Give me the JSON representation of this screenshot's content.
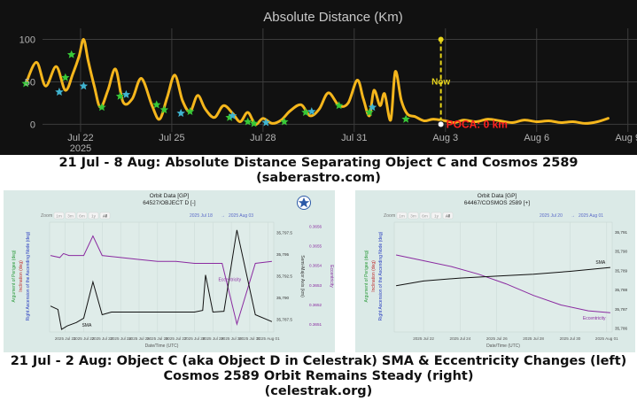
{
  "top_chart": {
    "title": "Absolute Distance (Km)",
    "now_label": "Now",
    "poca_label": "POCA: 0 km",
    "chart_data": {
      "type": "line",
      "title": "Absolute Distance (Km)",
      "xlabel": "",
      "ylabel": "",
      "x_ticks": [
        "Jul 22",
        "Jul 25",
        "Jul 28",
        "Jul 31",
        "Aug 3",
        "Aug 6",
        "Aug 9"
      ],
      "x_tick_values": [
        22,
        25,
        28,
        31,
        34,
        37,
        40
      ],
      "x_sub_label": "2025",
      "y_ticks": [
        0,
        50,
        100
      ],
      "xlim": [
        19.35,
        40.3
      ],
      "ylim": [
        -9,
        112
      ],
      "grid": true,
      "colors": {
        "background": "#111111",
        "line": "#f5b61c",
        "grid": "#3c3c3c",
        "now": "#e8d51b",
        "poca": "#ff2020",
        "marker": "#38c838",
        "marker_alt": "#40b4d0"
      },
      "series": [
        {
          "values_x": [
            20.2,
            20.55,
            20.85,
            21.2,
            21.5,
            21.75,
            21.95,
            22.1,
            22.25,
            22.45,
            22.65,
            22.9,
            23.15,
            23.4,
            23.7,
            24.0,
            24.35,
            24.6,
            24.85,
            25.1,
            25.35,
            25.6,
            25.85,
            26.1,
            26.4,
            26.7,
            27.0,
            27.25,
            27.5,
            27.75,
            28.0,
            28.3,
            28.6,
            28.9,
            29.25,
            29.55,
            29.85,
            30.15,
            30.5,
            30.8,
            31.1,
            31.3,
            31.5,
            31.65,
            31.85,
            32.0,
            32.2,
            32.35,
            32.55,
            32.75,
            33.0,
            33.3,
            33.6,
            34.0,
            34.3,
            34.6,
            35.0,
            35.4,
            35.8,
            36.2,
            36.6,
            37.0,
            37.4,
            37.8,
            38.2,
            38.6,
            39.0,
            39.35
          ],
          "values_y": [
            48,
            73,
            45,
            68,
            40,
            60,
            80,
            100,
            75,
            45,
            20,
            40,
            65,
            26,
            30,
            54,
            22,
            6,
            32,
            58,
            28,
            15,
            34,
            18,
            8,
            22,
            13,
            3,
            14,
            0,
            7,
            1,
            5,
            16,
            23,
            10,
            18,
            37,
            22,
            25,
            52,
            30,
            10,
            40,
            22,
            36,
            5,
            62,
            28,
            12,
            9,
            4,
            6,
            4,
            2,
            5,
            3,
            6,
            4,
            2,
            5,
            3,
            4,
            2,
            3,
            1,
            3,
            7
          ]
        }
      ],
      "markers": [
        {
          "x": 20.2,
          "y": 48
        },
        {
          "x": 21.3,
          "y": 38
        },
        {
          "x": 21.5,
          "y": 55
        },
        {
          "x": 21.7,
          "y": 82
        },
        {
          "x": 22.1,
          "y": 45
        },
        {
          "x": 22.7,
          "y": 20
        },
        {
          "x": 23.3,
          "y": 33
        },
        {
          "x": 23.5,
          "y": 35
        },
        {
          "x": 24.5,
          "y": 23
        },
        {
          "x": 24.75,
          "y": 17
        },
        {
          "x": 25.3,
          "y": 13
        },
        {
          "x": 25.6,
          "y": 15
        },
        {
          "x": 26.9,
          "y": 8
        },
        {
          "x": 27.0,
          "y": 10
        },
        {
          "x": 27.5,
          "y": 3
        },
        {
          "x": 27.7,
          "y": 1
        },
        {
          "x": 28.1,
          "y": 2
        },
        {
          "x": 28.7,
          "y": 3
        },
        {
          "x": 29.4,
          "y": 14
        },
        {
          "x": 29.6,
          "y": 15
        },
        {
          "x": 30.5,
          "y": 22
        },
        {
          "x": 31.5,
          "y": 14
        },
        {
          "x": 31.6,
          "y": 20
        },
        {
          "x": 32.7,
          "y": 6
        }
      ],
      "now_x": 33.85,
      "poca_x": 33.85,
      "poca_y": 0
    }
  },
  "caption_top_line1": "21 Jul - 8 Aug:  Absolute Distance Separating Object C and Cosmos 2589",
  "caption_top_line2": "(saberastro.com)",
  "left_panel": {
    "title": "Orbit Data [GP]",
    "subtitle": "64527/OBJECT D [-]",
    "zoom_label": "Zoom",
    "zoom_buttons": [
      "1m",
      "3m",
      "6m",
      "1y",
      "All"
    ],
    "range_from": "2025 Jul 18",
    "range_arrow": "→",
    "range_to": "2025 Aug 03",
    "y_left_labels": [
      "Argument of Perigee (deg)",
      "Inclination (deg)",
      "Right Ascension of the Ascending Node (deg)"
    ],
    "y_right_label_sma": "Semi-Major Axis (km)",
    "y_right_label_ecc": "Eccentricity",
    "x_title": "Date/Time (UTC)",
    "sma_label": "SMA",
    "ecc_label": "Eccentricity",
    "chart_data": {
      "type": "line",
      "x_ticks": [
        "2025 Jul 21",
        "2025 Jul 22",
        "2025 Jul 23",
        "2025 Jul 24",
        "2025 Jul 25",
        "2025 Jul 26",
        "2025 Jul 27",
        "2025 Jul 28",
        "2025 Jul 29",
        "2025 Jul 30",
        "2025 Jul 31",
        "2025 Aug 01"
      ],
      "x_tick_values": [
        21,
        22,
        23,
        24,
        25,
        26,
        27,
        28,
        29,
        30,
        31,
        32
      ],
      "xlim": [
        20.15,
        32.3
      ],
      "sma_ticks": [
        "35,797.5",
        "35,795",
        "35,792.5",
        "35,790",
        "35,787.5"
      ],
      "sma_tick_values": [
        35797.5,
        35795,
        35792.5,
        35790,
        35787.5
      ],
      "sma_lim": [
        35786,
        35798.7
      ],
      "ecc_ticks": [
        "0.3656",
        "0.3655",
        "0.3654",
        "0.3653",
        "0.3652",
        "0.3651"
      ],
      "ecc_tick_values": [
        0.3656,
        0.3655,
        0.3654,
        0.3653,
        0.3652,
        0.3651
      ],
      "ecc_lim": [
        0.36506,
        0.36562
      ],
      "colors": {
        "background": "#dbeae7",
        "sma": "#111111",
        "ecc": "#8a2aa0",
        "axis_left_green": "#2a9a3a",
        "axis_left_red": "#c03030",
        "axis_left_blue": "#2a3ec0"
      },
      "series": [
        {
          "name": "SMA",
          "x": [
            20.2,
            20.6,
            20.8,
            21.1,
            21.6,
            22.0,
            22.5,
            23.0,
            23.5,
            24.0,
            25.0,
            26.0,
            27.0,
            28.0,
            28.45,
            28.6,
            29.0,
            29.6,
            30.3,
            31.3,
            32.2
          ],
          "y": [
            35789,
            35788.6,
            35786.3,
            35786.7,
            35787.1,
            35787.6,
            35791.8,
            35788.0,
            35788.3,
            35788.3,
            35788.3,
            35788.3,
            35788.3,
            35788.3,
            35788.5,
            35792.6,
            35788.3,
            35788.4,
            35797.8,
            35788.0,
            35787.2
          ]
        },
        {
          "name": "Eccentricity",
          "x": [
            20.2,
            20.7,
            20.9,
            21.2,
            22.0,
            22.5,
            23.0,
            24.0,
            25.0,
            26.0,
            27.0,
            28.0,
            28.5,
            29.5,
            30.3,
            31.3,
            32.2
          ],
          "y": [
            0.36545,
            0.36544,
            0.36546,
            0.36545,
            0.36545,
            0.36555,
            0.36545,
            0.36544,
            0.36543,
            0.36542,
            0.36542,
            0.36541,
            0.36541,
            0.36541,
            0.3651,
            0.36541,
            0.36542
          ]
        }
      ]
    }
  },
  "right_panel": {
    "title": "Orbit Data [GP]",
    "subtitle": "64467/COSMOS 2589 [+]",
    "zoom_label": "Zoom",
    "zoom_buttons": [
      "1m",
      "3m",
      "6m",
      "1y",
      "All"
    ],
    "range_from": "2025 Jul 20",
    "range_arrow": "→",
    "range_to": "2025 Aug 01",
    "y_left_labels": [
      "Argument of Perigee (deg)",
      "Inclination (deg)",
      "Right Ascension of the Ascending Node (deg)"
    ],
    "x_title": "Date/Time (UTC)",
    "sma_label": "SMA",
    "ecc_label": "Eccentricity",
    "chart_data": {
      "type": "line",
      "x_ticks": [
        "2025 Jul 22",
        "2025 Jul 24",
        "2025 Jul 26",
        "2025 Jul 28",
        "2025 Jul 30",
        "2025 Aug 01"
      ],
      "x_tick_values": [
        22,
        24,
        26,
        28,
        30,
        32
      ],
      "xlim": [
        20.4,
        32.3
      ],
      "sma_ticks": [
        "35,791",
        "35,790",
        "35,789",
        "35,788",
        "35,787",
        "35,786"
      ],
      "sma_tick_values": [
        35791,
        35790,
        35789,
        35788,
        35787,
        35786
      ],
      "sma_lim": [
        35785.8,
        35791.5
      ],
      "colors": {
        "background": "#dbeae7",
        "sma": "#111111",
        "ecc": "#8a2aa0"
      },
      "series": [
        {
          "name": "SMA",
          "x": [
            20.5,
            22,
            24,
            26,
            28,
            30,
            32.2
          ],
          "y": [
            35788.2,
            35788.45,
            35788.6,
            35788.7,
            35788.8,
            35788.95,
            35789.15
          ]
        },
        {
          "name": "Eccentricity",
          "x": [
            20.5,
            22,
            23.5,
            25,
            26.5,
            28,
            29.5,
            31,
            32.2
          ],
          "y": [
            35789.8,
            35789.5,
            35789.2,
            35788.8,
            35788.3,
            35787.7,
            35787.2,
            35786.9,
            35786.8
          ]
        }
      ]
    }
  },
  "caption_bottom_line1": "21 Jul - 2 Aug:  Object C (aka Object D in Celestrak) SMA & Eccentricity Changes (left)",
  "caption_bottom_line2": "Cosmos 2589 Orbit Remains Steady (right)",
  "caption_bottom_line3": "(celestrak.org)"
}
